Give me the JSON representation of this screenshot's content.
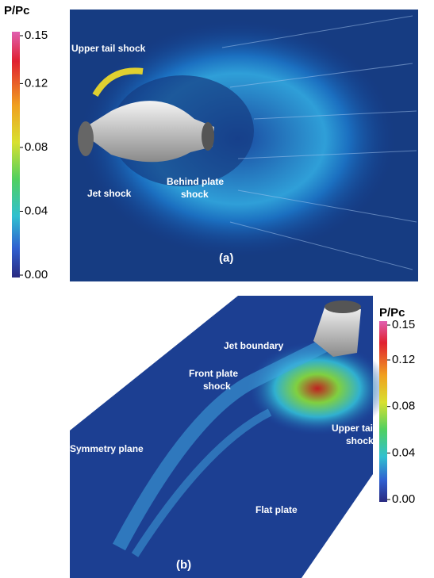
{
  "panels": [
    {
      "label": "(a)",
      "colorbar": {
        "title": "P/Pc",
        "range": [
          0,
          0.15
        ],
        "ticks": [
          0.15,
          0.12,
          0.08,
          0.04,
          {
            "value": 0,
            "label": "0.00"
          }
        ]
      },
      "annotations": [
        [
          "Upper tail shock"
        ],
        [
          "Jet shock"
        ],
        [
          "Behind plate",
          "shock"
        ]
      ]
    },
    {
      "label": "(b)",
      "colorbar": {
        "title": "P/Pc",
        "range": [
          0,
          0.15
        ],
        "ticks": [
          0.15,
          0.12,
          0.08,
          0.04,
          {
            "value": 0,
            "label": "0.00"
          }
        ]
      },
      "annotations": [
        [
          "Jet boundary"
        ],
        [
          "Front plate",
          "shock"
        ],
        [
          "Symmetry plane"
        ],
        [
          "Upper tail",
          "shock"
        ],
        [
          "Flat plate"
        ]
      ]
    }
  ]
}
